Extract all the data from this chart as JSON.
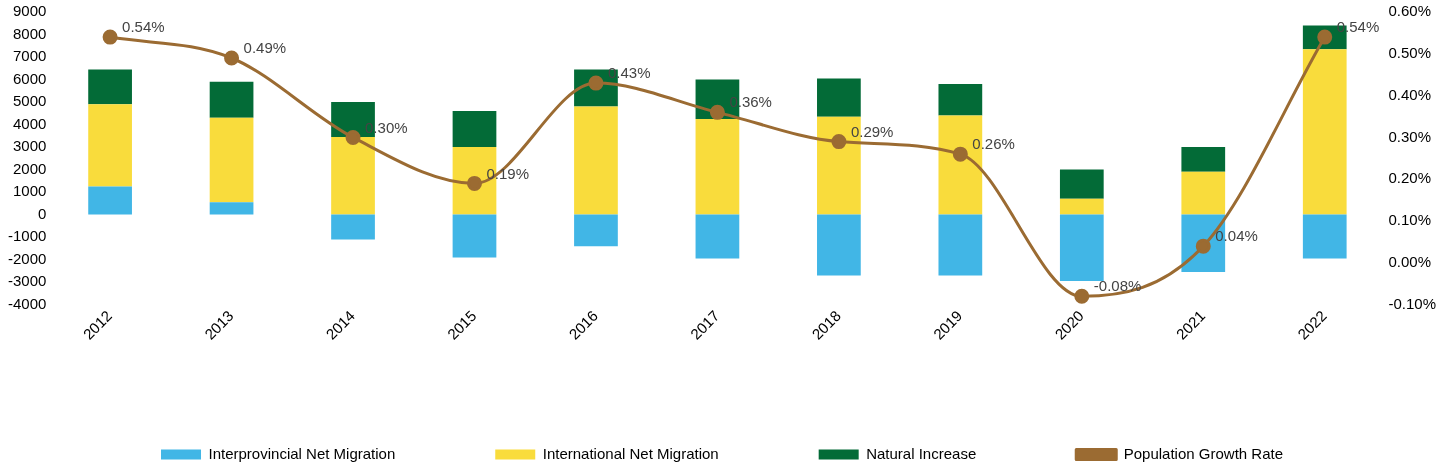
{
  "chart_data": {
    "type": "bar",
    "stacked": true,
    "legend": "bottom",
    "categories": [
      "2012",
      "2013",
      "2014",
      "2015",
      "2016",
      "2017",
      "2018",
      "2019",
      "2020",
      "2021",
      "2022"
    ],
    "series": [
      {
        "name": "Interprovincial Net Migration",
        "color": "#41b6e6",
        "values": [
          1250,
          550,
          -1100,
          -1900,
          -1400,
          -1950,
          -2700,
          -2700,
          -2950,
          -2550,
          -1950
        ]
      },
      {
        "name": "International Net Migration",
        "color": "#f9dc3c",
        "values": [
          3650,
          3750,
          3450,
          3000,
          4800,
          4250,
          4350,
          4400,
          700,
          1900,
          7350
        ]
      },
      {
        "name": "Natural Increase",
        "color": "#036b37",
        "values": [
          1550,
          1600,
          1550,
          1600,
          1650,
          1750,
          1700,
          1400,
          1300,
          1100,
          1050
        ]
      },
      {
        "name": "Population Growth Rate",
        "type": "line",
        "axis": "y2",
        "color": "#9b6b32",
        "marker": "circle",
        "values": [
          0.54,
          0.49,
          0.3,
          0.19,
          0.43,
          0.36,
          0.29,
          0.26,
          -0.08,
          0.04,
          0.54
        ],
        "value_labels": [
          "0.54%",
          "0.49%",
          "0.30%",
          "0.19%",
          "0.43%",
          "0.36%",
          "0.29%",
          "0.26%",
          "-0.08%",
          "0.04%",
          "0.54%"
        ]
      }
    ],
    "ylim": [
      -4000,
      9000
    ],
    "yticks": [
      -4000,
      -3000,
      -2000,
      -1000,
      0,
      1000,
      2000,
      3000,
      4000,
      5000,
      6000,
      7000,
      8000,
      9000
    ],
    "y2lim": [
      -0.1,
      0.6
    ],
    "y2ticks": [
      {
        "value": -0.1,
        "label": "-0.10%"
      },
      {
        "value": 0,
        "label": "0.00%"
      },
      {
        "value": 0.1,
        "label": "0.10%"
      },
      {
        "value": 0.2,
        "label": "0.20%"
      },
      {
        "value": 0.3,
        "label": "0.30%"
      },
      {
        "value": 0.4,
        "label": "0.40%"
      },
      {
        "value": 0.5,
        "label": "0.50%"
      },
      {
        "value": 0.6,
        "label": "0.60%"
      }
    ]
  }
}
